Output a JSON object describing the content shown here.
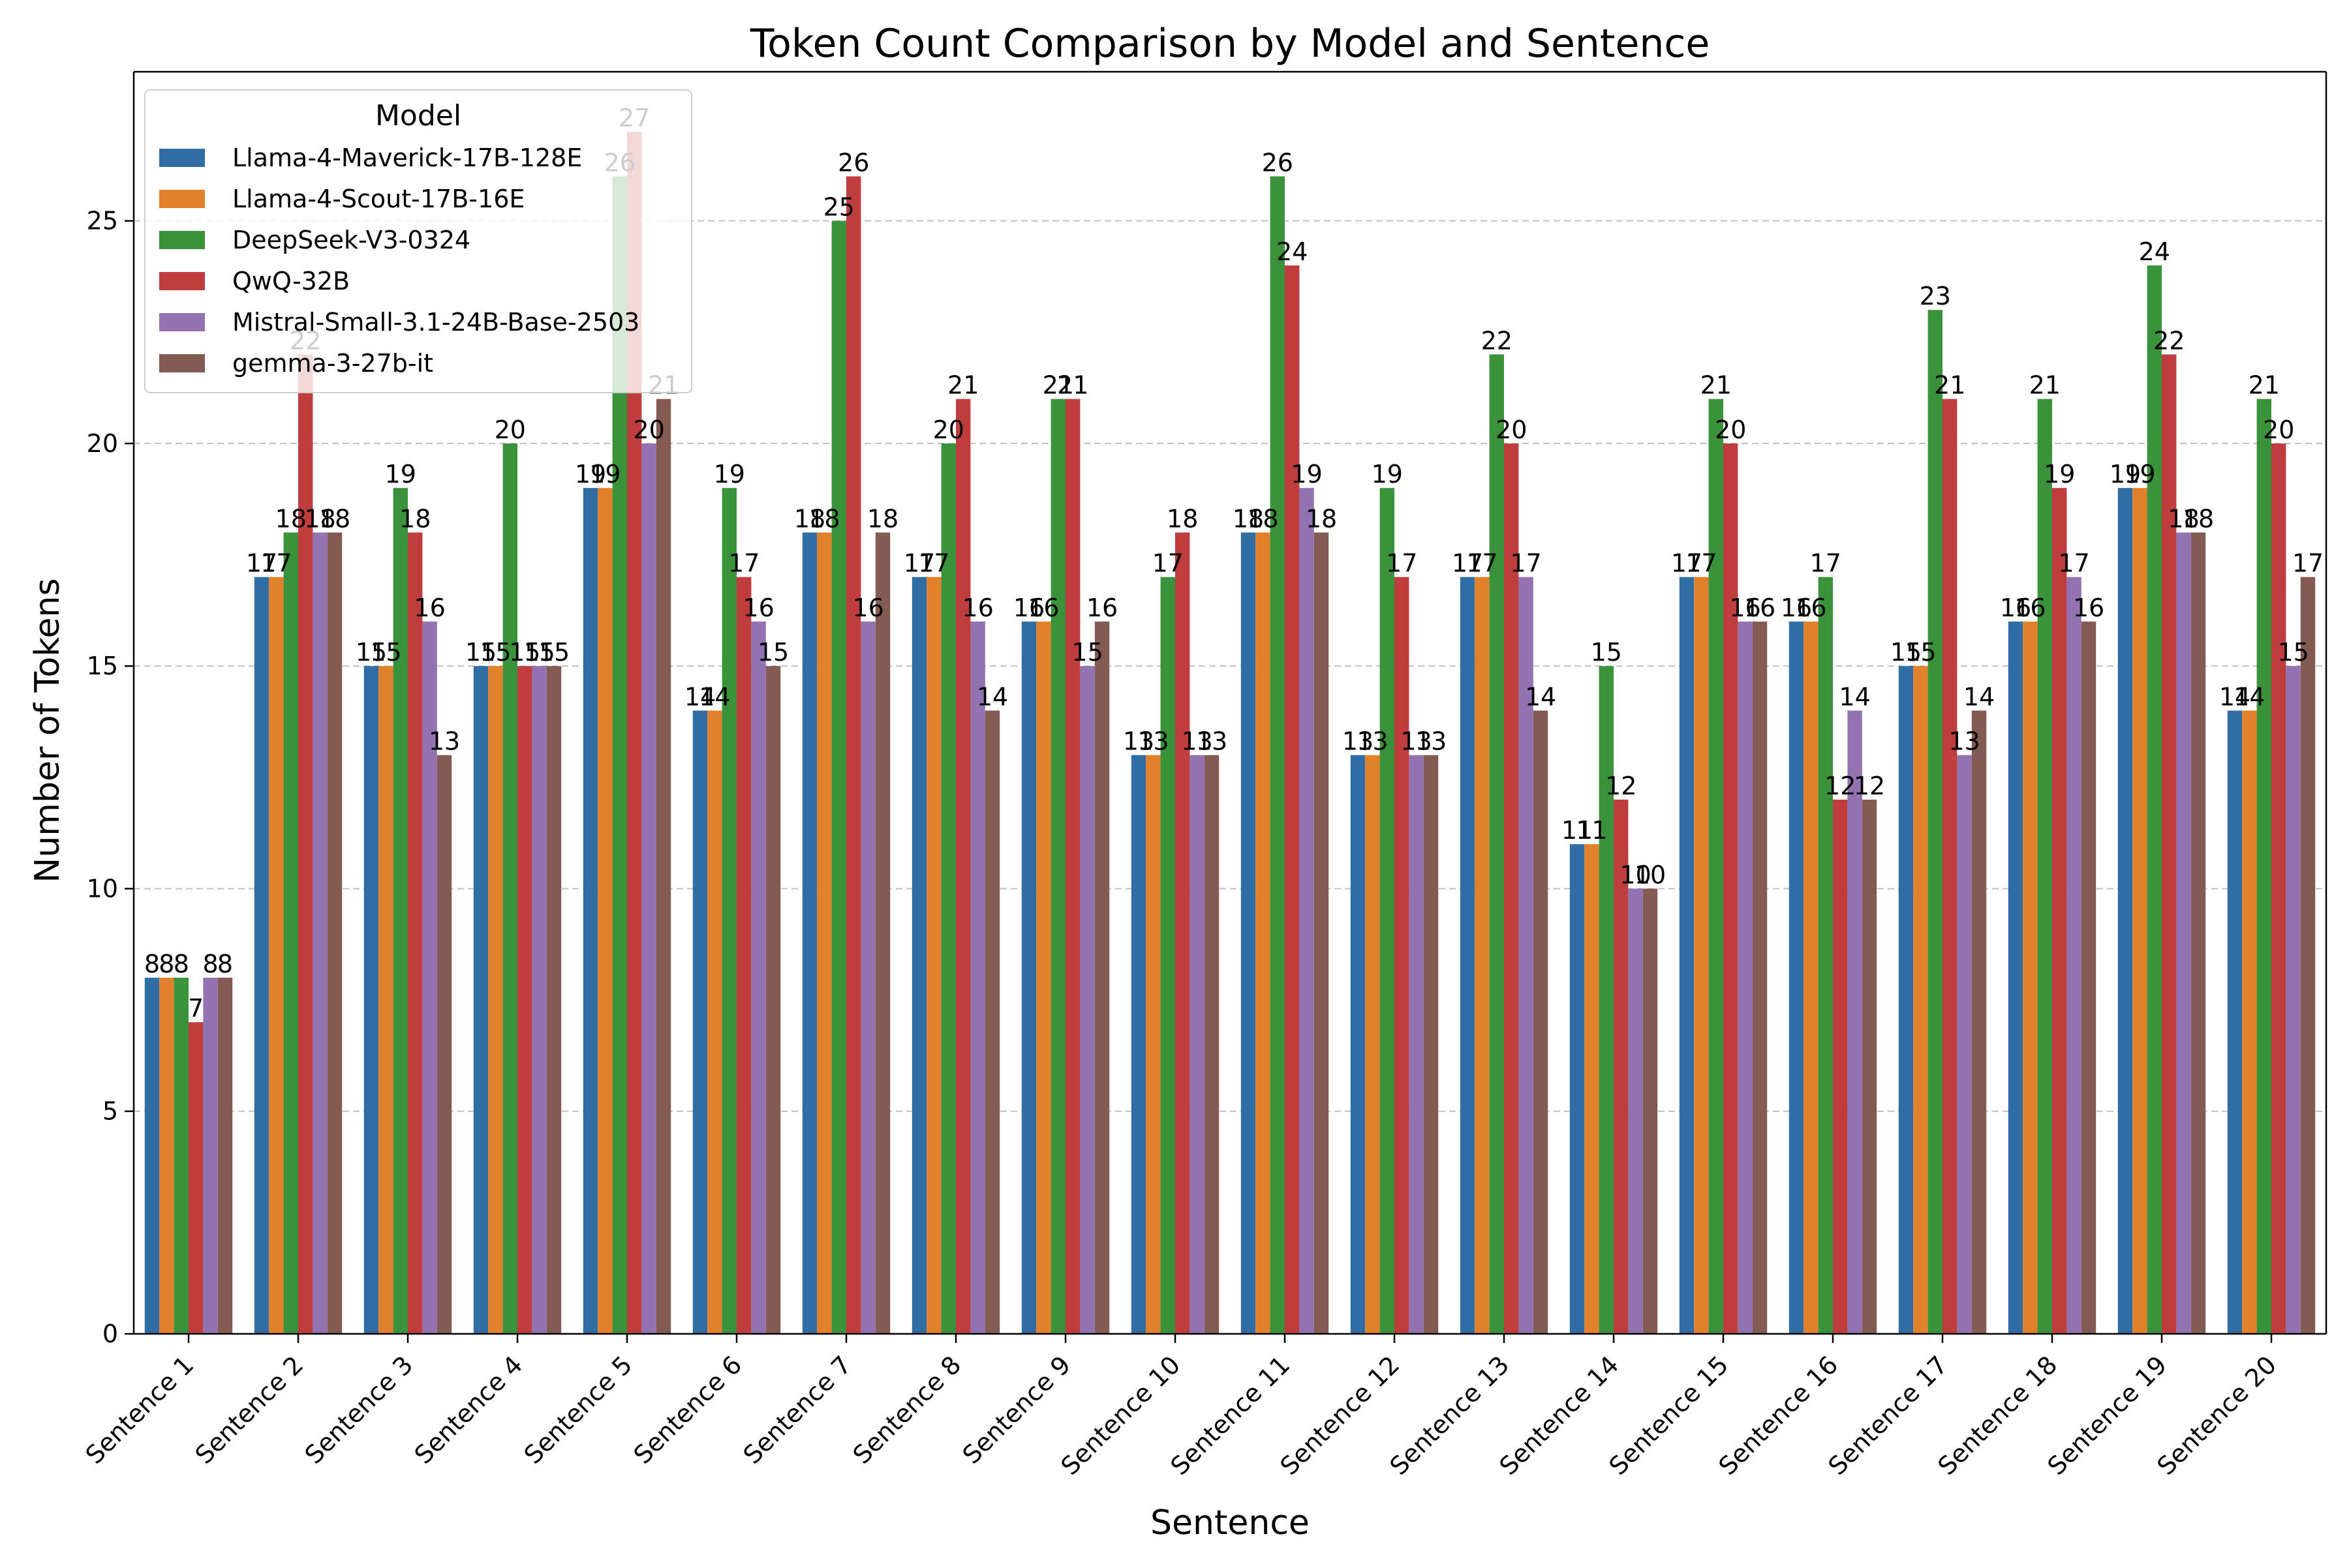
{
  "chart_data": {
    "type": "bar",
    "title": "Token Count Comparison by Model and Sentence",
    "xlabel": "Sentence",
    "ylabel": "Number of Tokens",
    "ylim": [
      0,
      28.35
    ],
    "yticks": [
      0,
      5,
      10,
      15,
      20,
      25
    ],
    "grid": "y-dashed",
    "legend_title": "Model",
    "legend_position": "top-left",
    "categories": [
      "Sentence 1",
      "Sentence 2",
      "Sentence 3",
      "Sentence 4",
      "Sentence 5",
      "Sentence 6",
      "Sentence 7",
      "Sentence 8",
      "Sentence 9",
      "Sentence 10",
      "Sentence 11",
      "Sentence 12",
      "Sentence 13",
      "Sentence 14",
      "Sentence 15",
      "Sentence 16",
      "Sentence 17",
      "Sentence 18",
      "Sentence 19",
      "Sentence 20"
    ],
    "series": [
      {
        "name": "Llama-4-Maverick-17B-128E",
        "color": "#2f6da3",
        "values": [
          8,
          17,
          15,
          15,
          19,
          14,
          18,
          17,
          16,
          13,
          18,
          13,
          17,
          11,
          17,
          16,
          15,
          16,
          19,
          14
        ]
      },
      {
        "name": "Llama-4-Scout-17B-16E",
        "color": "#e1812c",
        "values": [
          8,
          17,
          15,
          15,
          19,
          14,
          18,
          17,
          16,
          13,
          18,
          13,
          17,
          11,
          17,
          16,
          15,
          16,
          19,
          14
        ]
      },
      {
        "name": "DeepSeek-V3-0324",
        "color": "#3a923a",
        "values": [
          8,
          18,
          19,
          20,
          26,
          19,
          25,
          20,
          21,
          17,
          26,
          19,
          22,
          15,
          21,
          17,
          23,
          21,
          24,
          21
        ]
      },
      {
        "name": "QwQ-32B",
        "color": "#c03d3e",
        "values": [
          7,
          22,
          18,
          15,
          27,
          17,
          26,
          21,
          21,
          18,
          24,
          17,
          20,
          12,
          20,
          12,
          21,
          19,
          22,
          20
        ]
      },
      {
        "name": "Mistral-Small-3.1-24B-Base-2503",
        "color": "#9372b2",
        "values": [
          8,
          18,
          16,
          15,
          20,
          16,
          16,
          16,
          15,
          13,
          19,
          13,
          17,
          10,
          16,
          14,
          13,
          17,
          18,
          15
        ]
      },
      {
        "name": "gemma-3-27b-it",
        "color": "#845b53",
        "values": [
          8,
          18,
          13,
          15,
          21,
          15,
          18,
          14,
          16,
          13,
          18,
          13,
          14,
          10,
          16,
          12,
          14,
          16,
          18,
          17
        ]
      }
    ]
  }
}
